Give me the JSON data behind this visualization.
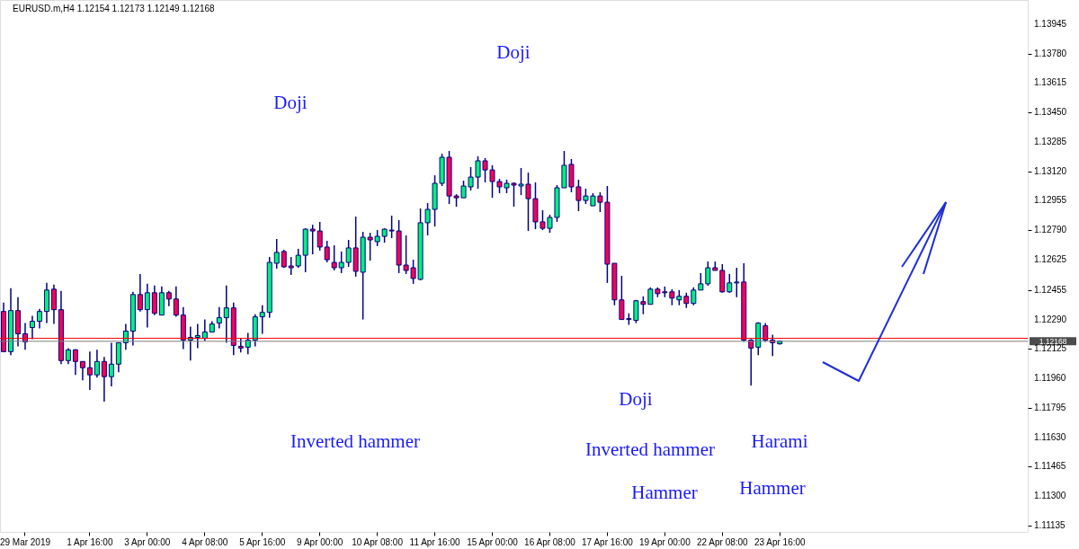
{
  "chart_data": {
    "type": "candlestick",
    "title": "EURUSD.m,H4  1.12154 1.12173 1.12149 1.12168",
    "categories": [
      null,
      null,
      null,
      "29 Mar 2019",
      null,
      null,
      null,
      null,
      null,
      null,
      null,
      null,
      "1 Apr 16:00",
      null,
      null,
      null,
      null,
      null,
      null,
      null,
      "3 Apr 00:00",
      null,
      null,
      null,
      null,
      null,
      null,
      null,
      "4 Apr 08:00",
      null,
      null,
      null,
      null,
      null,
      null,
      null,
      "5 Apr 16:00",
      null,
      null,
      null,
      null,
      null,
      null,
      null,
      "9 Apr 00:00",
      null,
      null,
      null,
      null,
      null,
      null,
      null,
      "10 Apr 08:00",
      null,
      null,
      null,
      null,
      null,
      null,
      null,
      "11 Apr 16:00",
      null,
      null,
      null,
      null,
      null,
      null,
      null,
      "15 Apr 00:00",
      null,
      null,
      null,
      null,
      null,
      null,
      null,
      "16 Apr 08:00",
      null,
      null,
      null,
      null,
      null,
      null,
      null,
      "17 Apr 16:00",
      null,
      null,
      null,
      null,
      null,
      null,
      null,
      "19 Apr 00:00",
      null,
      null,
      null,
      null,
      null,
      null,
      null,
      "22 Apr 08:00",
      null,
      null,
      null,
      null,
      null,
      null,
      null,
      "23 Apr 16:00",
      null,
      null,
      null,
      null,
      null,
      null,
      null,
      null,
      null,
      null,
      null,
      null,
      null,
      null,
      null,
      null,
      null,
      null,
      null,
      null,
      null,
      null,
      null,
      null,
      null,
      null,
      null,
      null,
      null,
      null,
      null,
      null,
      null,
      null
    ],
    "ohlc": [
      [
        1.12335,
        1.12385,
        1.1211,
        1.1211
      ],
      [
        1.1211,
        1.12465,
        1.1209,
        1.1234
      ],
      [
        1.1234,
        1.12415,
        1.1214,
        1.1221
      ],
      [
        1.1221,
        1.1227,
        1.1212,
        1.12165
      ],
      [
        1.12245,
        1.1231,
        1.1218,
        1.1228
      ],
      [
        1.1228,
        1.1235,
        1.1224,
        1.12335
      ],
      [
        1.12335,
        1.12495,
        1.1227,
        1.12455
      ],
      [
        1.1246,
        1.12485,
        1.12265,
        1.12345
      ],
      [
        1.12345,
        1.1245,
        1.1204,
        1.1206
      ],
      [
        1.1206,
        1.1213,
        1.1204,
        1.1212
      ],
      [
        1.1212,
        1.12125,
        1.1198,
        1.12055
      ],
      [
        1.12055,
        1.12055,
        1.1195,
        1.1202
      ],
      [
        1.1202,
        1.1211,
        1.11895,
        1.1198
      ],
      [
        1.1198,
        1.1212,
        1.11965,
        1.12055
      ],
      [
        1.12055,
        1.1208,
        1.1183,
        1.1197
      ],
      [
        1.1197,
        1.1216,
        1.11915,
        1.1204
      ],
      [
        1.1204,
        1.1216,
        1.11995,
        1.1216
      ],
      [
        1.1216,
        1.12265,
        1.1212,
        1.12225
      ],
      [
        1.12225,
        1.12445,
        1.12145,
        1.1243
      ],
      [
        1.1243,
        1.12545,
        1.12335,
        1.12345
      ],
      [
        1.12345,
        1.1249,
        1.12245,
        1.1244
      ],
      [
        1.1244,
        1.1248,
        1.12315,
        1.12325
      ],
      [
        1.12315,
        1.12475,
        1.12315,
        1.1244
      ],
      [
        1.1244,
        1.1245,
        1.12365,
        1.12405
      ],
      [
        1.12405,
        1.12475,
        1.12305,
        1.12315
      ],
      [
        1.12315,
        1.1236,
        1.12125,
        1.12175
      ],
      [
        1.12175,
        1.1225,
        1.1206,
        1.1219
      ],
      [
        1.1219,
        1.12265,
        1.1213,
        1.122
      ],
      [
        1.12185,
        1.1229,
        1.1217,
        1.1222
      ],
      [
        1.1222,
        1.1228,
        1.1222,
        1.12265
      ],
      [
        1.1227,
        1.1236,
        1.1224,
        1.123
      ],
      [
        1.123,
        1.1248,
        1.1216,
        1.12355
      ],
      [
        1.12355,
        1.12385,
        1.1209,
        1.12145
      ],
      [
        1.1214,
        1.12185,
        1.12105,
        1.1213
      ],
      [
        1.12135,
        1.12215,
        1.12095,
        1.12175
      ],
      [
        1.12175,
        1.1232,
        1.1214,
        1.12305
      ],
      [
        1.12305,
        1.1237,
        1.1221,
        1.1233
      ],
      [
        1.1233,
        1.1264,
        1.123,
        1.1261
      ],
      [
        1.12605,
        1.12741,
        1.12575,
        1.12666
      ],
      [
        1.12671,
        1.12681,
        1.1258,
        1.12585
      ],
      [
        1.1259,
        1.1264,
        1.1254,
        1.1258
      ],
      [
        1.1259,
        1.12686,
        1.1258,
        1.1265
      ],
      [
        1.1265,
        1.12801,
        1.12555,
        1.12796
      ],
      [
        1.12796,
        1.12821,
        1.12655,
        1.12786
      ],
      [
        1.12786,
        1.12837,
        1.12676,
        1.12696
      ],
      [
        1.12696,
        1.12731,
        1.1261,
        1.12625
      ],
      [
        1.1261,
        1.12706,
        1.12565,
        1.1258
      ],
      [
        1.1258,
        1.12671,
        1.1255,
        1.1261
      ],
      [
        1.1261,
        1.12736,
        1.12585,
        1.12691
      ],
      [
        1.12691,
        1.12867,
        1.1253,
        1.1256
      ],
      [
        1.12555,
        1.12781,
        1.1229,
        1.12751
      ],
      [
        1.12751,
        1.12776,
        1.1262,
        1.12736
      ],
      [
        1.12726,
        1.12791,
        1.12701,
        1.12756
      ],
      [
        1.12756,
        1.12801,
        1.12721,
        1.12796
      ],
      [
        1.12791,
        1.12872,
        1.12746,
        1.12786
      ],
      [
        1.12786,
        1.12847,
        1.1255,
        1.12595
      ],
      [
        1.12595,
        1.12761,
        1.12545,
        1.12565
      ],
      [
        1.1258,
        1.12625,
        1.1249,
        1.1252
      ],
      [
        1.12515,
        1.12912,
        1.1251,
        1.12832
      ],
      [
        1.12832,
        1.12942,
        1.12761,
        1.12907
      ],
      [
        1.12907,
        1.13098,
        1.12811,
        1.13053
      ],
      [
        1.13053,
        1.13219,
        1.13038,
        1.13199
      ],
      [
        1.13199,
        1.13234,
        1.12937,
        1.12982
      ],
      [
        1.12982,
        1.12992,
        1.12922,
        1.12972
      ],
      [
        1.12972,
        1.13068,
        1.12972,
        1.13038
      ],
      [
        1.13033,
        1.13144,
        1.13013,
        1.13088
      ],
      [
        1.13088,
        1.13204,
        1.13023,
        1.13179
      ],
      [
        1.13179,
        1.13194,
        1.13058,
        1.13128
      ],
      [
        1.13128,
        1.13154,
        1.12972,
        1.13063
      ],
      [
        1.13063,
        1.13078,
        1.12998,
        1.13033
      ],
      [
        1.13028,
        1.13073,
        1.12998,
        1.13053
      ],
      [
        1.13053,
        1.13058,
        1.12922,
        1.13043
      ],
      [
        1.13038,
        1.13139,
        1.12987,
        1.13048
      ],
      [
        1.13048,
        1.13113,
        1.12786,
        1.12967
      ],
      [
        1.12967,
        1.13058,
        1.12796,
        1.12837
      ],
      [
        1.12837,
        1.12902,
        1.12791,
        1.12801
      ],
      [
        1.12801,
        1.12877,
        1.12776,
        1.12862
      ],
      [
        1.12862,
        1.13043,
        1.12837,
        1.13028
      ],
      [
        1.13028,
        1.13234,
        1.13028,
        1.13154
      ],
      [
        1.13159,
        1.13189,
        1.13003,
        1.13033
      ],
      [
        1.13033,
        1.13073,
        1.12897,
        1.12957
      ],
      [
        1.12957,
        1.13023,
        1.12937,
        1.12982
      ],
      [
        1.12927,
        1.12998,
        1.12927,
        1.12982
      ],
      [
        1.12982,
        1.13003,
        1.12892,
        1.12947
      ],
      [
        1.12947,
        1.13038,
        1.12495,
        1.126
      ],
      [
        1.12605,
        1.12605,
        1.1237,
        1.124
      ],
      [
        1.124,
        1.12535,
        1.1229,
        1.1229
      ],
      [
        1.12295,
        1.12325,
        1.1226,
        1.1229
      ],
      [
        1.12285,
        1.124,
        1.1227,
        1.12395
      ],
      [
        1.1239,
        1.1242,
        1.1232,
        1.12375
      ],
      [
        1.12375,
        1.1247,
        1.12375,
        1.1246
      ],
      [
        1.1246,
        1.1247,
        1.12415,
        1.12435
      ],
      [
        1.12445,
        1.12475,
        1.12415,
        1.1244
      ],
      [
        1.12445,
        1.1246,
        1.1237,
        1.1241
      ],
      [
        1.124,
        1.12455,
        1.1237,
        1.1242
      ],
      [
        1.1242,
        1.1244,
        1.12355,
        1.1238
      ],
      [
        1.1238,
        1.1247,
        1.1237,
        1.12455
      ],
      [
        1.12455,
        1.1255,
        1.12455,
        1.1249
      ],
      [
        1.1249,
        1.12615,
        1.1248,
        1.1258
      ],
      [
        1.1258,
        1.12615,
        1.12565,
        1.12565
      ],
      [
        1.12565,
        1.126,
        1.1244,
        1.12445
      ],
      [
        1.12445,
        1.12545,
        1.1244,
        1.12495
      ],
      [
        1.12495,
        1.1258,
        1.12415,
        1.125
      ],
      [
        1.125,
        1.12605,
        1.12165,
        1.12175
      ],
      [
        1.12175,
        1.1218,
        1.1192,
        1.1213
      ],
      [
        1.12135,
        1.12275,
        1.1209,
        1.1227
      ],
      [
        1.12255,
        1.1227,
        1.12165,
        1.12175
      ],
      [
        1.12175,
        1.12205,
        1.12085,
        1.1216
      ],
      [
        1.12154,
        1.12173,
        1.12149,
        1.12168
      ],
      null,
      null,
      null,
      null,
      null,
      null,
      null,
      null,
      null,
      null,
      null,
      null,
      null,
      null,
      null,
      null,
      null,
      null,
      null,
      null,
      null,
      null,
      null,
      null,
      null,
      null,
      null,
      null,
      null,
      null,
      null,
      null,
      null,
      null
    ],
    "color": "#000080",
    "colors": [
      "#f5005a",
      "#00f080",
      "#f5005a",
      "#f5005a",
      "#00f080",
      "#00f080",
      "#00f080",
      "#f5005a",
      "#f5005a",
      "#00f080",
      "#f5005a",
      "#f5005a",
      "#f5005a",
      "#00f080",
      "#f5005a",
      "#00f080",
      "#00f080",
      "#00f080",
      "#00f080",
      "#f5005a",
      "#00f080",
      "#f5005a",
      "#00f080",
      "#f5005a",
      "#f5005a",
      "#f5005a",
      "#00f080",
      "#00f080",
      "#00f080",
      "#00f080",
      "#00f080",
      "#00f080",
      "#f5005a",
      "#f5005a",
      "#00f080",
      "#00f080",
      "#00f080",
      "#00f080",
      "#00f080",
      "#f5005a",
      "#f5005a",
      "#00f080",
      "#00f080",
      "#f5005a",
      "#f5005a",
      "#f5005a",
      "#f5005a",
      "#00f080",
      "#00f080",
      "#f5005a",
      "#00f080",
      "#f5005a",
      "#00f080",
      "#00f080",
      "#f5005a",
      "#f5005a",
      "#f5005a",
      "#f5005a",
      "#00f080",
      "#00f080",
      "#00f080",
      "#00f080",
      "#f5005a",
      "#f5005a",
      "#00f080",
      "#00f080",
      "#00f080",
      "#f5005a",
      "#f5005a",
      "#f5005a",
      "#00f080",
      "#f5005a",
      "#00f080",
      "#f5005a",
      "#f5005a",
      "#f5005a",
      "#00f080",
      "#00f080",
      "#00f080",
      "#f5005a",
      "#f5005a",
      "#00f080",
      "#00f080",
      "#f5005a",
      "#f5005a",
      "#f5005a",
      "#f5005a",
      "#f5005a",
      "#00f080",
      "#f5005a",
      "#00f080",
      "#f5005a",
      "#f5005a",
      "#f5005a",
      "#00f080",
      "#f5005a",
      "#00f080",
      "#00f080",
      "#00f080",
      "#f5005a",
      "#f5005a",
      "#00f080",
      "#00f080",
      "#f5005a",
      "#f5005a",
      "#00f080",
      "#f5005a",
      "#f5005a",
      "#00f080",
      null,
      null,
      null,
      null,
      null,
      null,
      null,
      null,
      null,
      null,
      null,
      null,
      null,
      null,
      null,
      null,
      null,
      null,
      null,
      null,
      null,
      null,
      null,
      null,
      null,
      null,
      null,
      null,
      null,
      null,
      null,
      null,
      null,
      null
    ],
    "ylim": [
      1.111,
      1.1408
    ],
    "yticks": [
      1.11135,
      {
        "value": 1.113,
        "label": "1.11300"
      },
      1.11465,
      {
        "value": 1.1163,
        "label": "1.11630"
      },
      1.11795,
      {
        "value": 1.1196,
        "label": "1.11960"
      },
      1.12125,
      {
        "value": 1.1229,
        "label": "1.12290"
      },
      1.12455,
      1.12625,
      {
        "value": 1.1279,
        "label": "1.12790"
      },
      1.12955,
      {
        "value": 1.1312,
        "label": "1.13120"
      },
      1.13285,
      {
        "value": 1.1345,
        "label": "1.13450"
      },
      1.13615,
      {
        "value": 1.1378,
        "label": "1.13780"
      },
      1.13945
    ],
    "ref_lines": [
      {
        "axis": "y",
        "value": 1.12185,
        "color": "#ff0000"
      },
      {
        "axis": "y",
        "value": 1.12168,
        "label": "1.12168",
        "color": "#808080"
      }
    ],
    "annotations": [
      "Doji",
      "Doji",
      "Inverted hammer",
      "Doji",
      "Inverted hammer",
      "Hammer",
      "Harami",
      "Hammer"
    ],
    "grid": false
  }
}
